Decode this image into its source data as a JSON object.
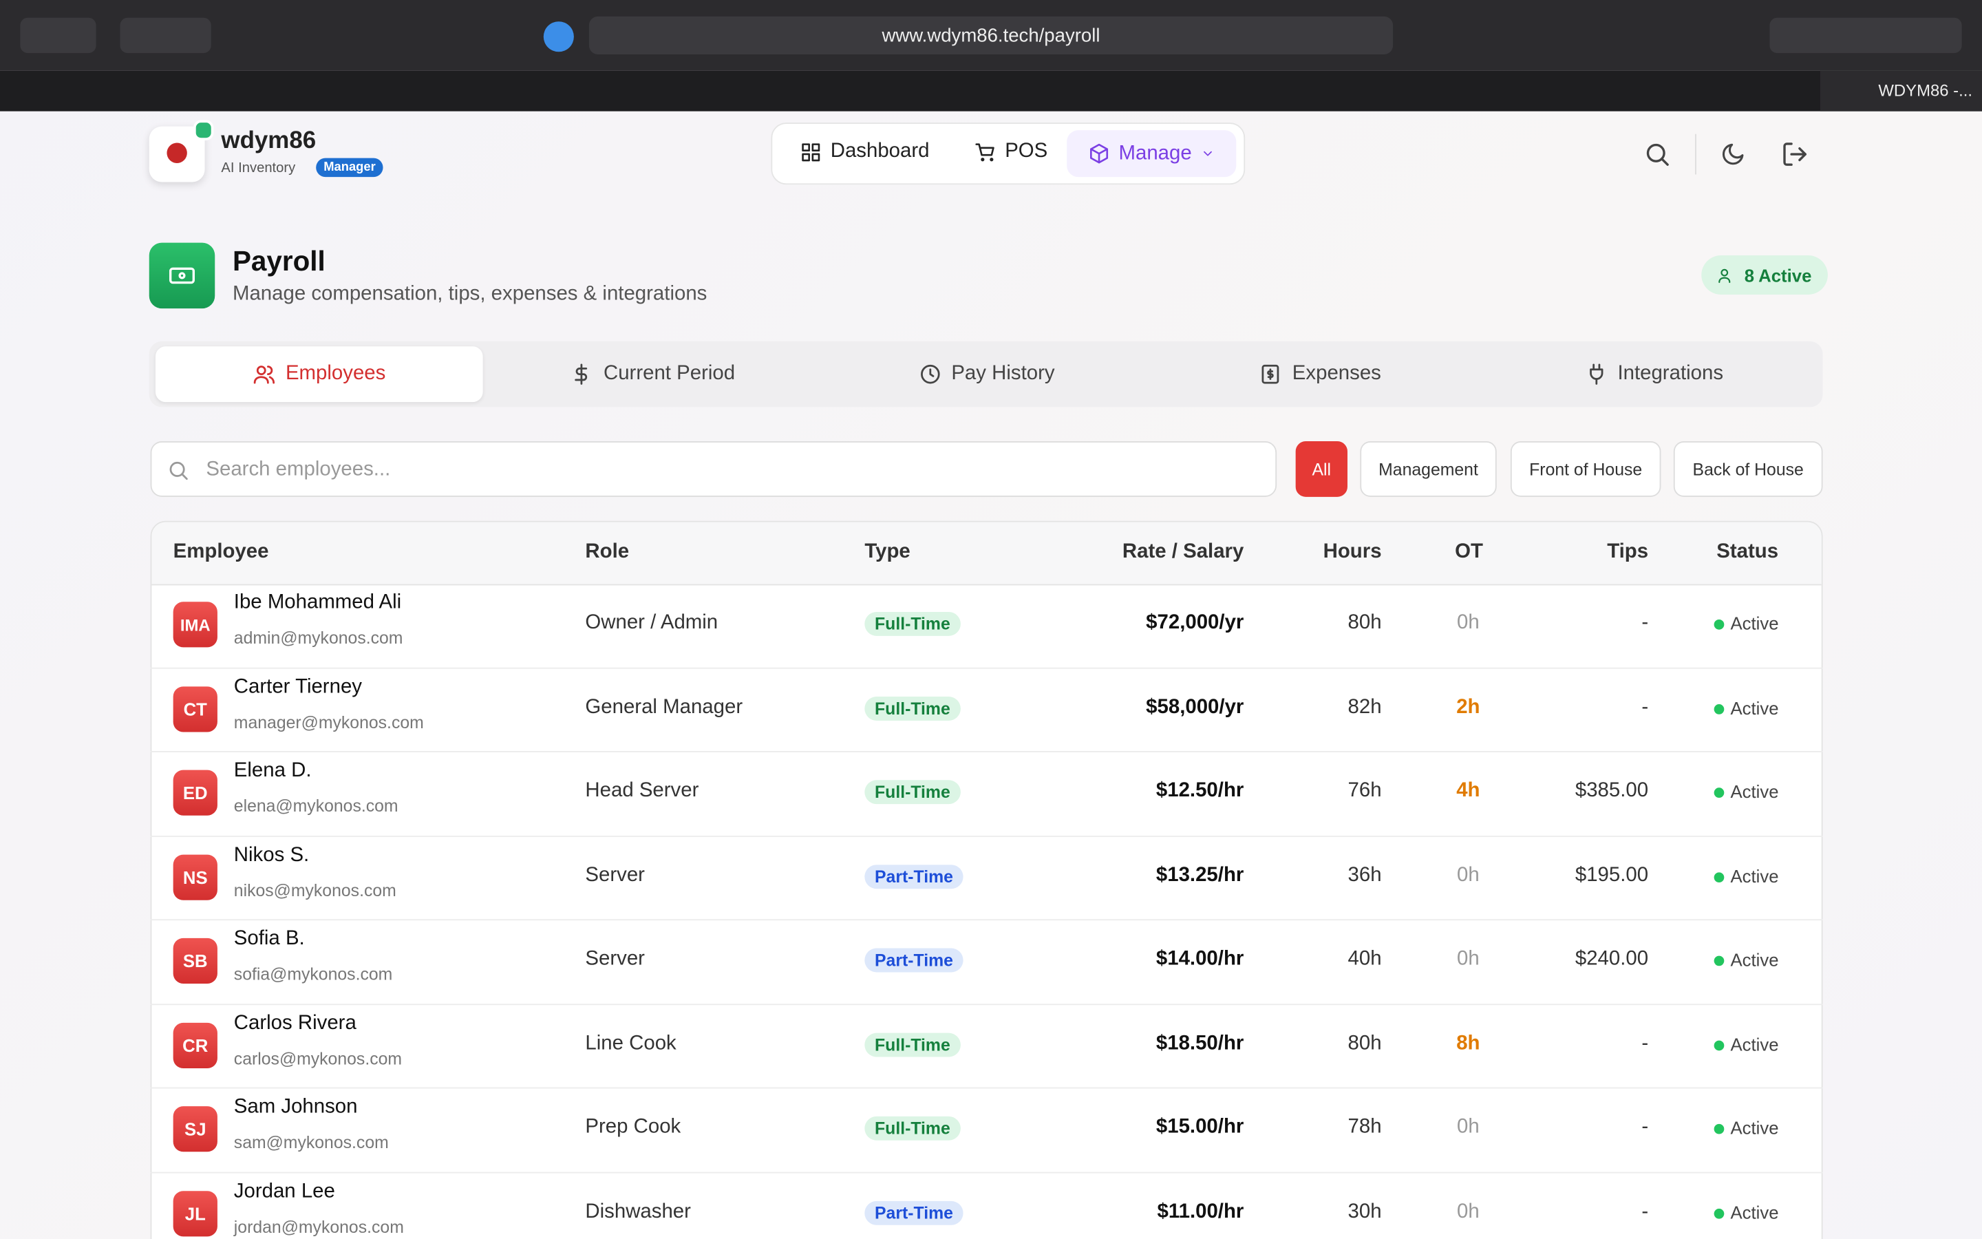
{
  "browser": {
    "url": "www.wdym86.tech/payroll",
    "active_tab": "WDYM86 -..."
  },
  "header": {
    "brand": "wdym86",
    "subtitle": "AI Inventory",
    "badge": "Manager",
    "nav": [
      "Dashboard",
      "POS",
      "Manage"
    ]
  },
  "page": {
    "title": "Payroll",
    "subtitle": "Manage compensation, tips, expenses & integrations",
    "active_count": "8 Active"
  },
  "tabs": [
    "Employees",
    "Current Period",
    "Pay History",
    "Expenses",
    "Integrations"
  ],
  "search": {
    "placeholder": "Search employees..."
  },
  "filters": [
    "All",
    "Management",
    "Front of House",
    "Back of House"
  ],
  "table": {
    "headers": [
      "Employee",
      "Role",
      "Type",
      "Rate / Salary",
      "Hours",
      "OT",
      "Tips",
      "Status"
    ],
    "rows": [
      {
        "initials": "IMA",
        "name": "Ibe Mohammed Ali",
        "email": "admin@mykonos.com",
        "role": "Owner / Admin",
        "type": "Full-Time",
        "rate": "$72,000/yr",
        "hours": "80h",
        "ot": "0h",
        "tips": "-",
        "status": "Active"
      },
      {
        "initials": "CT",
        "name": "Carter Tierney",
        "email": "manager@mykonos.com",
        "role": "General Manager",
        "type": "Full-Time",
        "rate": "$58,000/yr",
        "hours": "82h",
        "ot": "2h",
        "tips": "-",
        "status": "Active"
      },
      {
        "initials": "ED",
        "name": "Elena D.",
        "email": "elena@mykonos.com",
        "role": "Head Server",
        "type": "Full-Time",
        "rate": "$12.50/hr",
        "hours": "76h",
        "ot": "4h",
        "tips": "$385.00",
        "status": "Active"
      },
      {
        "initials": "NS",
        "name": "Nikos S.",
        "email": "nikos@mykonos.com",
        "role": "Server",
        "type": "Part-Time",
        "rate": "$13.25/hr",
        "hours": "36h",
        "ot": "0h",
        "tips": "$195.00",
        "status": "Active"
      },
      {
        "initials": "SB",
        "name": "Sofia B.",
        "email": "sofia@mykonos.com",
        "role": "Server",
        "type": "Part-Time",
        "rate": "$14.00/hr",
        "hours": "40h",
        "ot": "0h",
        "tips": "$240.00",
        "status": "Active"
      },
      {
        "initials": "CR",
        "name": "Carlos Rivera",
        "email": "carlos@mykonos.com",
        "role": "Line Cook",
        "type": "Full-Time",
        "rate": "$18.50/hr",
        "hours": "80h",
        "ot": "8h",
        "tips": "-",
        "status": "Active"
      },
      {
        "initials": "SJ",
        "name": "Sam Johnson",
        "email": "sam@mykonos.com",
        "role": "Prep Cook",
        "type": "Full-Time",
        "rate": "$15.00/hr",
        "hours": "78h",
        "ot": "0h",
        "tips": "-",
        "status": "Active"
      },
      {
        "initials": "JL",
        "name": "Jordan Lee",
        "email": "jordan@mykonos.com",
        "role": "Dishwasher",
        "type": "Part-Time",
        "rate": "$11.00/hr",
        "hours": "30h",
        "ot": "0h",
        "tips": "-",
        "status": "Active"
      }
    ]
  }
}
